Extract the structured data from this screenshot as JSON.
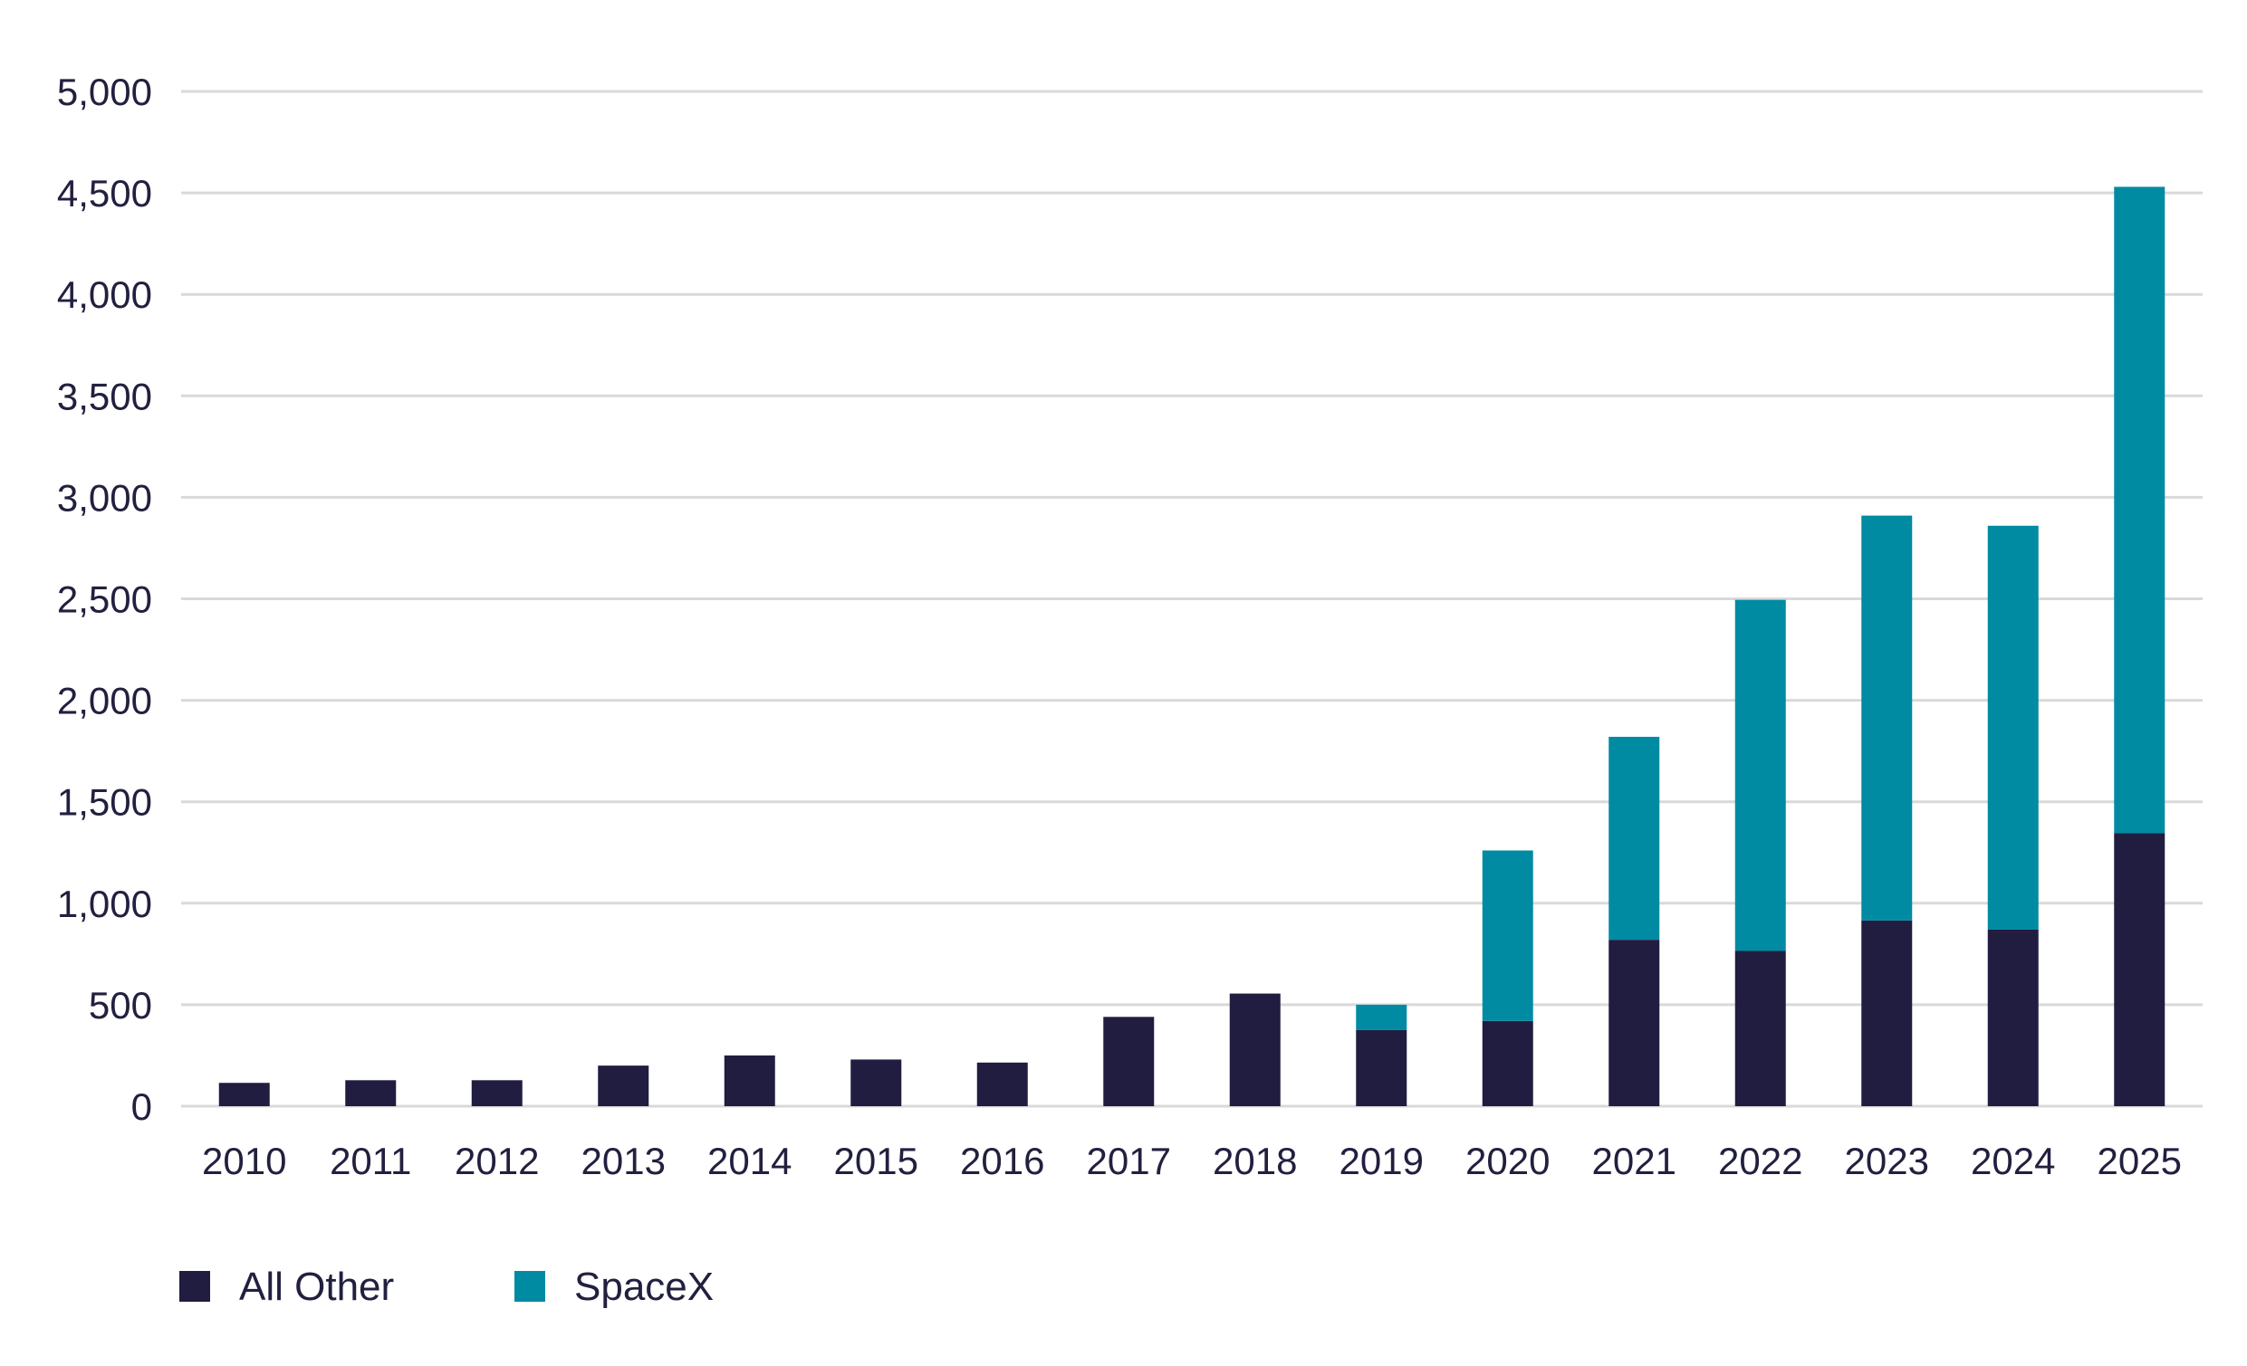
{
  "chart_data": {
    "type": "bar",
    "stacked": true,
    "categories": [
      "2010",
      "2011",
      "2012",
      "2013",
      "2014",
      "2015",
      "2016",
      "2017",
      "2018",
      "2019",
      "2020",
      "2021",
      "2022",
      "2023",
      "2024",
      "2025"
    ],
    "series": [
      {
        "name": "All Other",
        "color": "#211d40",
        "values": [
          115,
          128,
          128,
          200,
          250,
          230,
          215,
          440,
          555,
          375,
          420,
          820,
          765,
          915,
          870,
          1345
        ]
      },
      {
        "name": "SpaceX",
        "color": "#008ba3",
        "values": [
          0,
          0,
          0,
          0,
          0,
          0,
          0,
          0,
          0,
          125,
          840,
          1000,
          1730,
          1995,
          1990,
          3185
        ]
      }
    ],
    "ylim": [
      0,
      5000
    ],
    "yticks": [
      0,
      500,
      1000,
      1500,
      2000,
      2500,
      3000,
      3500,
      4000,
      4500,
      5000
    ],
    "ytick_labels": [
      "0",
      "500",
      "1,000",
      "1,500",
      "2,000",
      "2,500",
      "3,000",
      "3,500",
      "4,000",
      "4,500",
      "5,000"
    ],
    "grid": true,
    "legend": {
      "position": "bottom-left",
      "entries": [
        "All Other",
        "SpaceX"
      ]
    }
  }
}
